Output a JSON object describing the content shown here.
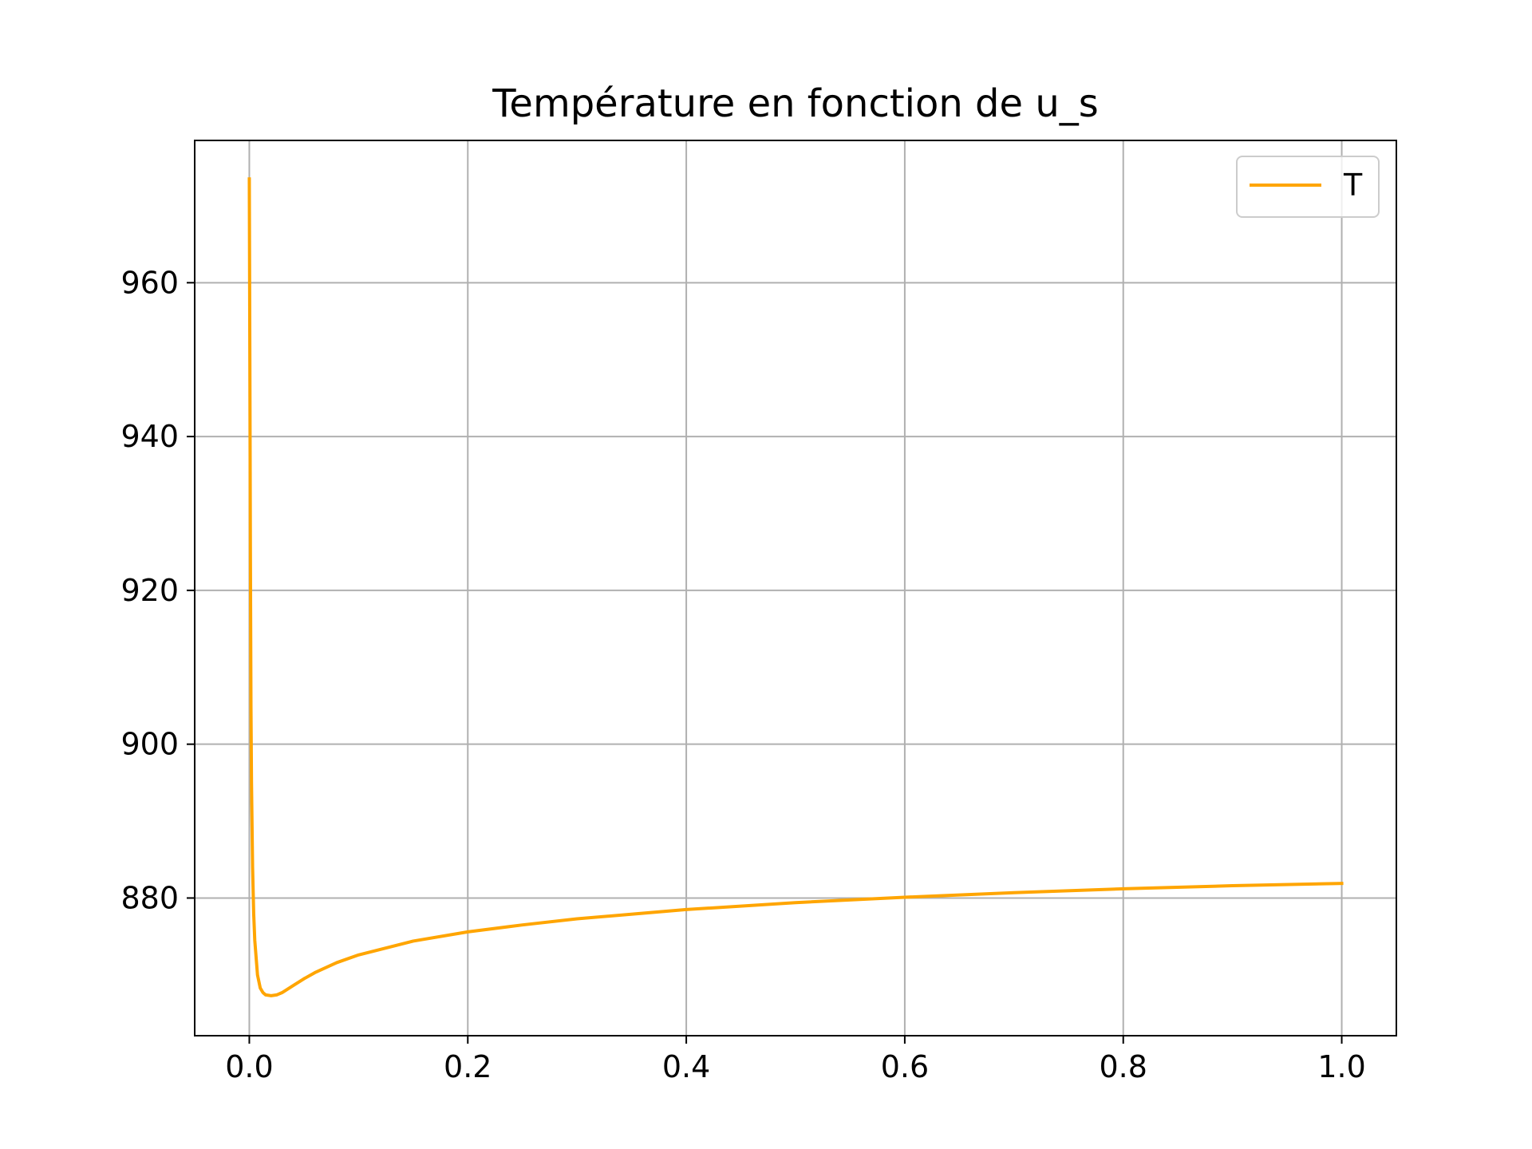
{
  "chart_data": {
    "type": "line",
    "title": "Température en fonction de u_s",
    "xlabel": "",
    "ylabel": "",
    "xlim": [
      -0.05,
      1.05
    ],
    "ylim": [
      862.1,
      978.5
    ],
    "grid": true,
    "legend_position": "upper right",
    "x_ticks": [
      0.0,
      0.2,
      0.4,
      0.6,
      0.8,
      1.0
    ],
    "x_tick_labels": [
      "0.0",
      "0.2",
      "0.4",
      "0.6",
      "0.8",
      "1.0"
    ],
    "y_ticks": [
      880,
      900,
      920,
      940,
      960
    ],
    "y_tick_labels": [
      "880",
      "900",
      "920",
      "940",
      "960"
    ],
    "series": [
      {
        "name": "T",
        "color": "#ffa500",
        "x": [
          0.0,
          0.0005,
          0.001,
          0.0015,
          0.002,
          0.003,
          0.004,
          0.005,
          0.0075,
          0.01,
          0.0125,
          0.015,
          0.02,
          0.025,
          0.03,
          0.04,
          0.05,
          0.06,
          0.08,
          0.1,
          0.15,
          0.2,
          0.25,
          0.3,
          0.4,
          0.5,
          0.6,
          0.7,
          0.8,
          0.9,
          1.0
        ],
        "y": [
          973.5,
          950.0,
          925.0,
          905.0,
          895.0,
          884.0,
          878.0,
          874.5,
          870.0,
          868.3,
          867.7,
          867.4,
          867.3,
          867.4,
          867.7,
          868.6,
          869.5,
          870.3,
          871.6,
          872.6,
          874.4,
          875.6,
          876.5,
          877.3,
          878.5,
          879.4,
          880.1,
          880.7,
          881.2,
          881.6,
          881.9
        ]
      }
    ]
  }
}
